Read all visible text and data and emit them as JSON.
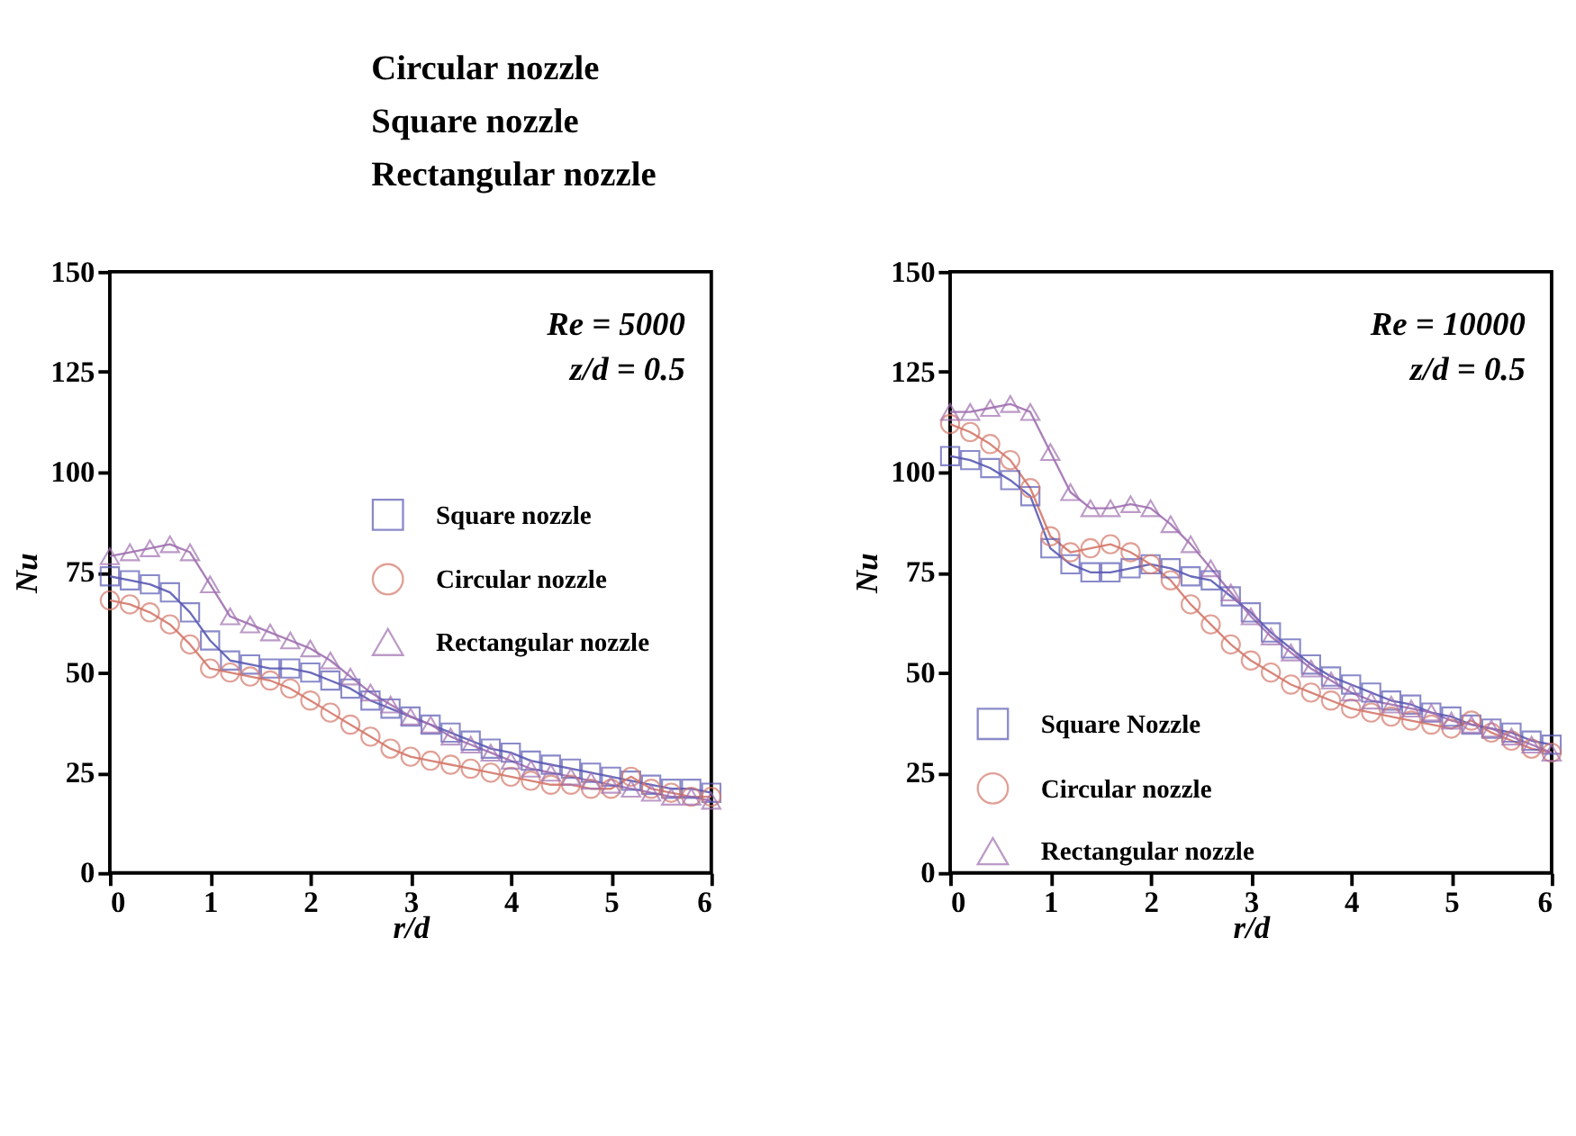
{
  "chart_data": [
    {
      "type": "other",
      "annotations": [
        "Circular nozzle",
        "Square nozzle",
        "Rectangular nozzle"
      ]
    },
    {
      "type": "line",
      "xlabel": "r/d",
      "ylabel": "Nu",
      "annotations": [
        "Re = 5000",
        "z/d = 0.5"
      ],
      "xlim": [
        0,
        6
      ],
      "ylim": [
        0,
        150
      ],
      "xticks": [
        0,
        1,
        2,
        3,
        4,
        5,
        6
      ],
      "yticks": [
        0,
        25,
        50,
        75,
        100,
        125,
        150
      ],
      "grid": false,
      "legend": "right",
      "x": [
        0,
        0.2,
        0.4,
        0.6,
        0.8,
        1.0,
        1.2,
        1.4,
        1.6,
        1.8,
        2.0,
        2.2,
        2.4,
        2.6,
        2.8,
        3.0,
        3.2,
        3.4,
        3.6,
        3.8,
        4.0,
        4.2,
        4.4,
        4.6,
        4.8,
        5.0,
        5.2,
        5.4,
        5.6,
        5.8,
        6.0
      ],
      "series": [
        {
          "name": "Square nozzle",
          "color": "#5a5ab4",
          "marker": "square",
          "values": [
            74,
            73,
            72,
            70,
            65,
            58,
            53,
            52,
            51,
            51,
            50,
            48,
            46,
            43,
            41,
            39,
            37,
            35,
            33,
            31,
            30,
            28,
            27,
            26,
            25,
            24,
            23,
            22,
            21,
            21,
            20
          ]
        },
        {
          "name": "Circular nozzle",
          "color": "#d4786a",
          "marker": "circle",
          "values": [
            68,
            67,
            65,
            62,
            57,
            51,
            50,
            49,
            48,
            46,
            43,
            40,
            37,
            34,
            31,
            29,
            28,
            27,
            26,
            25,
            24,
            23,
            22,
            22,
            21,
            21,
            24,
            21,
            20,
            19,
            19
          ]
        },
        {
          "name": "Rectangular nozzle",
          "color": "#a070b0",
          "marker": "triangle",
          "values": [
            79,
            80,
            81,
            82,
            80,
            72,
            64,
            62,
            60,
            58,
            56,
            53,
            49,
            45,
            42,
            39,
            37,
            34,
            32,
            30,
            28,
            26,
            25,
            24,
            23,
            22,
            21,
            20,
            19,
            19,
            18
          ]
        }
      ]
    },
    {
      "type": "line",
      "xlabel": "r/d",
      "ylabel": "Nu",
      "annotations": [
        "Re = 10000",
        "z/d = 0.5"
      ],
      "xlim": [
        0,
        6
      ],
      "ylim": [
        0,
        150
      ],
      "xticks": [
        0,
        1,
        2,
        3,
        4,
        5,
        6
      ],
      "yticks": [
        0,
        25,
        50,
        75,
        100,
        125,
        150
      ],
      "grid": false,
      "legend": "bottom left",
      "x": [
        0,
        0.2,
        0.4,
        0.6,
        0.8,
        1.0,
        1.2,
        1.4,
        1.6,
        1.8,
        2.0,
        2.2,
        2.4,
        2.6,
        2.8,
        3.0,
        3.2,
        3.4,
        3.6,
        3.8,
        4.0,
        4.2,
        4.4,
        4.6,
        4.8,
        5.0,
        5.2,
        5.4,
        5.6,
        5.8,
        6.0
      ],
      "series": [
        {
          "name": "Square Nozzle",
          "color": "#5a5ab4",
          "marker": "square",
          "values": [
            104,
            103,
            101,
            98,
            94,
            81,
            77,
            75,
            75,
            76,
            77,
            76,
            74,
            73,
            69,
            65,
            60,
            56,
            52,
            49,
            47,
            45,
            43,
            42,
            40,
            39,
            37,
            36,
            35,
            33,
            32
          ]
        },
        {
          "name": "Circular nozzle",
          "color": "#d4786a",
          "marker": "circle",
          "values": [
            112,
            110,
            107,
            103,
            96,
            84,
            80,
            81,
            82,
            80,
            77,
            73,
            67,
            62,
            57,
            53,
            50,
            47,
            45,
            43,
            41,
            40,
            39,
            38,
            37,
            36,
            38,
            35,
            33,
            31,
            30
          ]
        },
        {
          "name": "Rectangular nozzle",
          "color": "#a070b0",
          "marker": "triangle",
          "values": [
            115,
            115,
            116,
            117,
            115,
            105,
            95,
            91,
            91,
            92,
            91,
            87,
            82,
            76,
            70,
            64,
            59,
            55,
            51,
            48,
            45,
            43,
            42,
            41,
            40,
            38,
            37,
            36,
            34,
            32,
            30
          ]
        }
      ]
    }
  ]
}
